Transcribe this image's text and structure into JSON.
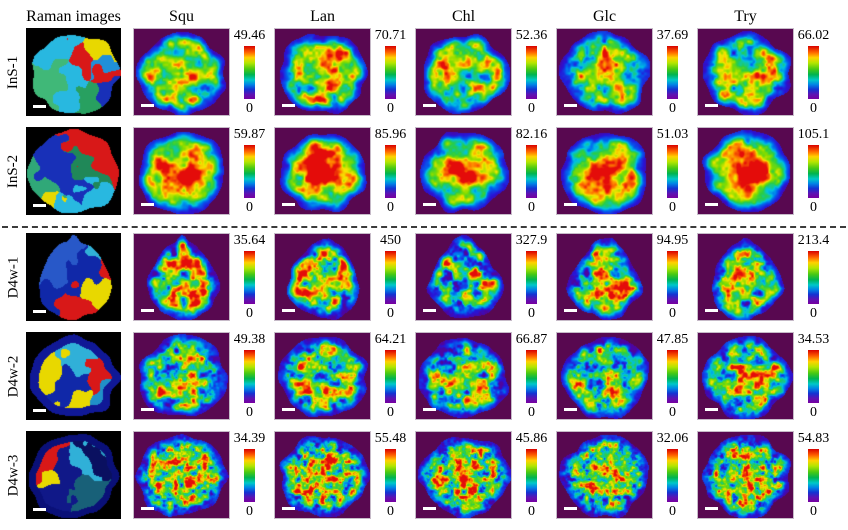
{
  "header": {
    "raman_label": "Raman images",
    "columns": [
      "Squ",
      "Lan",
      "Chl",
      "Glc",
      "Try"
    ]
  },
  "rows": [
    {
      "label": "InS-1",
      "panels": [
        {
          "max": "49.46",
          "min": "0"
        },
        {
          "max": "70.71",
          "min": "0"
        },
        {
          "max": "52.36",
          "min": "0"
        },
        {
          "max": "37.69",
          "min": "0"
        },
        {
          "max": "66.02",
          "min": "0"
        }
      ]
    },
    {
      "label": "InS-2",
      "panels": [
        {
          "max": "59.87",
          "min": "0"
        },
        {
          "max": "85.96",
          "min": "0"
        },
        {
          "max": "82.16",
          "min": "0"
        },
        {
          "max": "51.03",
          "min": "0"
        },
        {
          "max": "105.1",
          "min": "0"
        }
      ]
    },
    {
      "label": "D4w-1",
      "panels": [
        {
          "max": "35.64",
          "min": "0"
        },
        {
          "max": "450",
          "min": "0"
        },
        {
          "max": "327.9",
          "min": "0"
        },
        {
          "max": "94.95",
          "min": "0"
        },
        {
          "max": "213.4",
          "min": "0"
        }
      ]
    },
    {
      "label": "D4w-2",
      "panels": [
        {
          "max": "49.38",
          "min": "0"
        },
        {
          "max": "64.21",
          "min": "0"
        },
        {
          "max": "66.87",
          "min": "0"
        },
        {
          "max": "47.85",
          "min": "0"
        },
        {
          "max": "34.53",
          "min": "0"
        }
      ]
    },
    {
      "label": "D4w-3",
      "panels": [
        {
          "max": "34.39",
          "min": "0"
        },
        {
          "max": "55.48",
          "min": "0"
        },
        {
          "max": "45.86",
          "min": "0"
        },
        {
          "max": "32.06",
          "min": "0"
        },
        {
          "max": "54.83",
          "min": "0"
        }
      ]
    }
  ],
  "colors": {
    "heatmap_background": "#580850",
    "raman_background": "#000000",
    "colormap_high": "#d80000",
    "colormap_low": "#7800a0",
    "divider": "#3c3c3c"
  },
  "chart_data": {
    "type": "heatmap",
    "title": "",
    "first_column": "Raman images",
    "rows": [
      "InS-1",
      "InS-2",
      "D4w-1",
      "D4w-2",
      "D4w-3"
    ],
    "columns": [
      "Squ",
      "Lan",
      "Chl",
      "Glc",
      "Try"
    ],
    "colorbar_min": 0,
    "colorbar_max": {
      "InS-1": {
        "Squ": 49.46,
        "Lan": 70.71,
        "Chl": 52.36,
        "Glc": 37.69,
        "Try": 66.02
      },
      "InS-2": {
        "Squ": 59.87,
        "Lan": 85.96,
        "Chl": 82.16,
        "Glc": 51.03,
        "Try": 105.1
      },
      "D4w-1": {
        "Squ": 35.64,
        "Lan": 450,
        "Chl": 327.9,
        "Glc": 94.95,
        "Try": 213.4
      },
      "D4w-2": {
        "Squ": 49.38,
        "Lan": 64.21,
        "Chl": 66.87,
        "Glc": 47.85,
        "Try": 34.53
      },
      "D4w-3": {
        "Squ": 34.39,
        "Lan": 55.48,
        "Chl": 45.86,
        "Glc": 32.06,
        "Try": 54.83
      }
    },
    "colormap": "rainbow (purple=0, blue, green, yellow, red=max)",
    "row_groups": [
      {
        "name": "InS",
        "rows": [
          "InS-1",
          "InS-2"
        ]
      },
      {
        "name": "D4w",
        "rows": [
          "D4w-1",
          "D4w-2",
          "D4w-3"
        ]
      }
    ],
    "divider": "horizontal dashed line between InS-2 and D4w-1 rows"
  }
}
